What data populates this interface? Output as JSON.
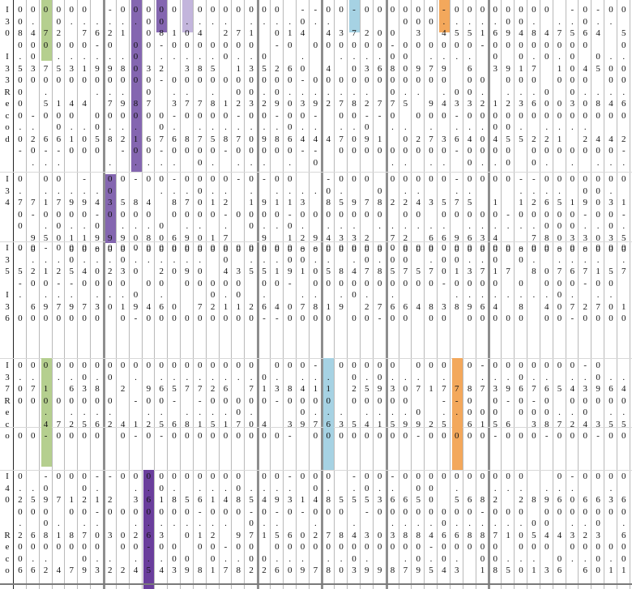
{
  "colors": {
    "green": "#b5cf8f",
    "purple": "#8466b0",
    "lavender": "#c3b5dc",
    "blue": "#a6d2e3",
    "orange": "#f3a85c",
    "deep_purple": "#6a3e9c"
  },
  "row_labels": [
    [
      "I",
      "3",
      "0",
      "",
      "I",
      "3",
      "3",
      "R",
      "e",
      "c",
      "o",
      "d"
    ],
    [
      "I",
      "3",
      "4"
    ],
    [
      "I",
      "3",
      "5",
      "",
      "I",
      "3",
      "6"
    ],
    [
      "I",
      "3",
      "7",
      "R",
      "e",
      "c",
      "o",
      "d"
    ],
    [
      "I",
      "4",
      "0",
      "",
      "",
      "R",
      "e",
      "c",
      "o",
      "d"
    ]
  ],
  "highlights": [
    {
      "name": "green",
      "col": 3,
      "from": 0,
      "to": 75,
      "color": "green"
    },
    {
      "name": "purple",
      "col": 10,
      "from": 0,
      "to": 212,
      "color": "purple"
    },
    {
      "name": "purple-top",
      "col": 12,
      "from": 0,
      "to": 40,
      "color": "purple"
    },
    {
      "name": "lavender",
      "col": 14,
      "from": 0,
      "to": 40,
      "color": "lavender"
    },
    {
      "name": "blue-top",
      "col": 27,
      "from": 0,
      "to": 40,
      "color": "blue"
    },
    {
      "name": "orange-top",
      "col": 34,
      "from": 0,
      "to": 40,
      "color": "orange"
    },
    {
      "name": "purple-mid",
      "col": 8,
      "from": 215,
      "to": 300,
      "color": "purple"
    },
    {
      "name": "green-low",
      "col": 3,
      "from": 442,
      "to": 576,
      "color": "green"
    },
    {
      "name": "blue-low",
      "col": 25,
      "from": 442,
      "to": 580,
      "color": "blue"
    },
    {
      "name": "orange-low",
      "col": 35,
      "from": 442,
      "to": 580,
      "color": "orange"
    },
    {
      "name": "deep-purple",
      "col": 11,
      "from": 580,
      "to": 727,
      "color": "deep_purple"
    }
  ],
  "bands": [
    {
      "top": 0,
      "lines": [
        "0000.0.000010000000000000000000000000000000000000",
        "00000002000000000000000000000000000000000000000000"
      ]
    }
  ]
}
